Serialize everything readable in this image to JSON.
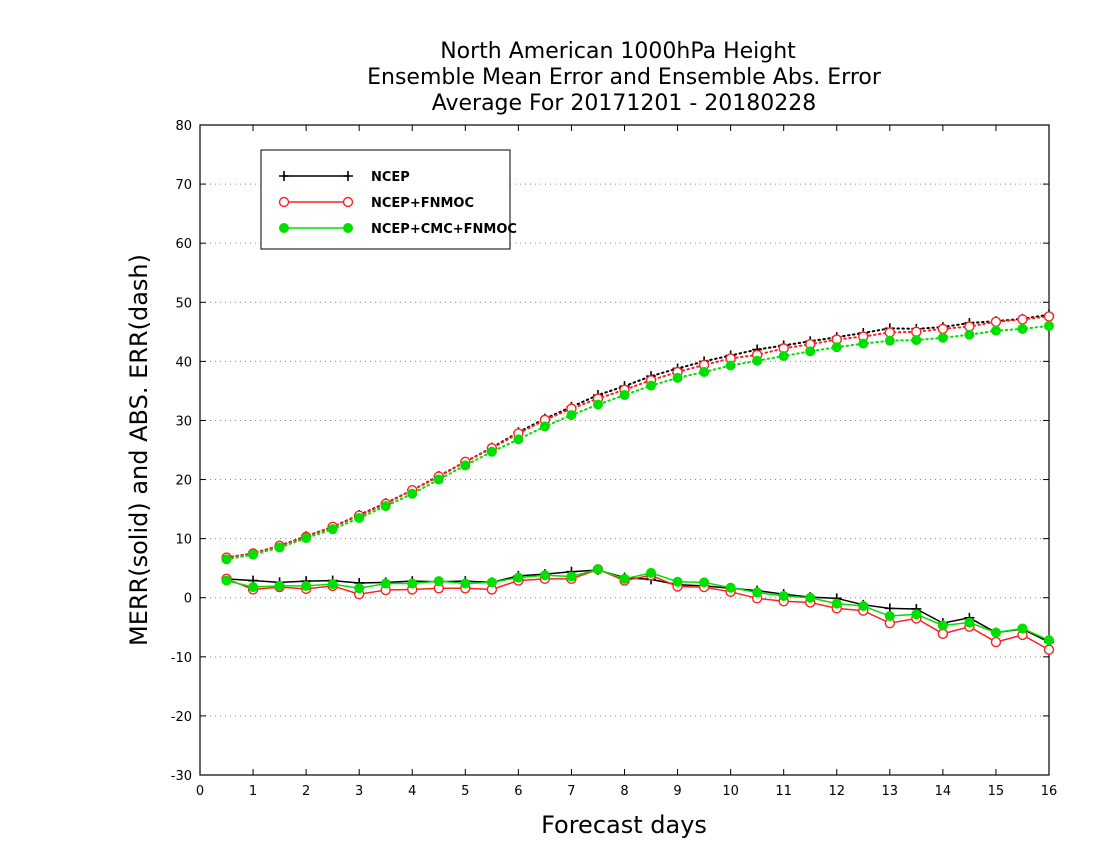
{
  "chart_data": {
    "type": "line",
    "title": [
      "North American 1000hPa Height",
      "Ensemble Mean Error and Ensemble Abs. Error",
      "Average For 20171201 - 20180228"
    ],
    "xlabel": "Forecast days",
    "ylabel": "MERR(solid) and ABS. ERR(dash)",
    "xlim": [
      0,
      16
    ],
    "ylim": [
      -30,
      80
    ],
    "xticks": [
      0,
      1,
      2,
      3,
      4,
      5,
      6,
      7,
      8,
      9,
      10,
      11,
      12,
      13,
      14,
      15,
      16
    ],
    "yticks": [
      -30,
      -20,
      -10,
      0,
      10,
      20,
      30,
      40,
      50,
      60,
      70,
      80
    ],
    "grid": "horizontal dotted",
    "legend_position": "top-left",
    "x": [
      0.5,
      1,
      1.5,
      2,
      2.5,
      3,
      3.5,
      4,
      4.5,
      5,
      5.5,
      6,
      6.5,
      7,
      7.5,
      8,
      8.5,
      9,
      9.5,
      10,
      10.5,
      11,
      11.5,
      12,
      12.5,
      13,
      13.5,
      14,
      14.5,
      15,
      15.5,
      16
    ],
    "series": [
      {
        "name": "NCEP",
        "color": "#000000",
        "marker": "plus",
        "merr": [
          3.2,
          2.9,
          2.6,
          2.8,
          2.9,
          2.5,
          2.6,
          2.8,
          2.7,
          2.8,
          2.6,
          3.7,
          4.0,
          4.4,
          4.7,
          3.4,
          3.1,
          2.2,
          2.0,
          1.6,
          1.2,
          0.6,
          0.1,
          -0.1,
          -1.2,
          -1.8,
          -1.9,
          -4.3,
          -3.4,
          -5.9,
          -5.3,
          -7.5
        ],
        "abs_err": [
          6.8,
          7.5,
          8.8,
          10.4,
          12.0,
          14.0,
          16.0,
          18.2,
          20.6,
          23.0,
          25.4,
          28.0,
          30.3,
          32.3,
          34.3,
          35.8,
          37.5,
          38.8,
          40.0,
          41.0,
          42.0,
          42.7,
          43.4,
          44.1,
          44.8,
          45.6,
          45.5,
          45.8,
          46.5,
          46.8,
          47.2,
          47.9
        ]
      },
      {
        "name": "NCEP+FNMOC",
        "color": "#ff2020",
        "marker": "open-circle",
        "merr": [
          3.2,
          1.4,
          1.8,
          1.5,
          2.0,
          0.6,
          1.3,
          1.4,
          1.6,
          1.6,
          1.4,
          2.9,
          3.2,
          3.2,
          4.8,
          2.9,
          3.8,
          1.9,
          1.8,
          1.0,
          -0.1,
          -0.6,
          -0.8,
          -1.8,
          -2.2,
          -4.3,
          -3.5,
          -6.1,
          -4.9,
          -7.5,
          -6.3,
          -8.8
        ],
        "abs_err": [
          6.8,
          7.5,
          8.8,
          10.3,
          12.0,
          13.9,
          15.9,
          18.2,
          20.5,
          23.0,
          25.3,
          27.8,
          30.1,
          32.0,
          33.7,
          35.2,
          36.8,
          38.2,
          39.4,
          40.5,
          41.1,
          42.2,
          42.9,
          43.7,
          44.2,
          44.9,
          45.0,
          45.5,
          45.9,
          46.7,
          47.1,
          47.6
        ]
      },
      {
        "name": "NCEP+CMC+FNMOC",
        "color": "#00e000",
        "marker": "filled-circle",
        "merr": [
          2.9,
          1.8,
          2.0,
          2.0,
          2.3,
          1.6,
          2.4,
          2.4,
          2.8,
          2.4,
          2.6,
          3.4,
          3.8,
          3.6,
          4.8,
          3.2,
          4.2,
          2.7,
          2.6,
          1.7,
          0.9,
          0.3,
          0.0,
          -1.0,
          -1.4,
          -3.1,
          -2.8,
          -4.7,
          -4.2,
          -5.9,
          -5.2,
          -7.2
        ],
        "abs_err": [
          6.5,
          7.3,
          8.5,
          10.1,
          11.6,
          13.5,
          15.5,
          17.6,
          20.0,
          22.4,
          24.7,
          26.8,
          29.0,
          30.9,
          32.7,
          34.3,
          35.9,
          37.2,
          38.2,
          39.3,
          40.1,
          40.9,
          41.7,
          42.4,
          43.0,
          43.5,
          43.6,
          44.0,
          44.5,
          45.2,
          45.5,
          46.0
        ]
      }
    ]
  }
}
